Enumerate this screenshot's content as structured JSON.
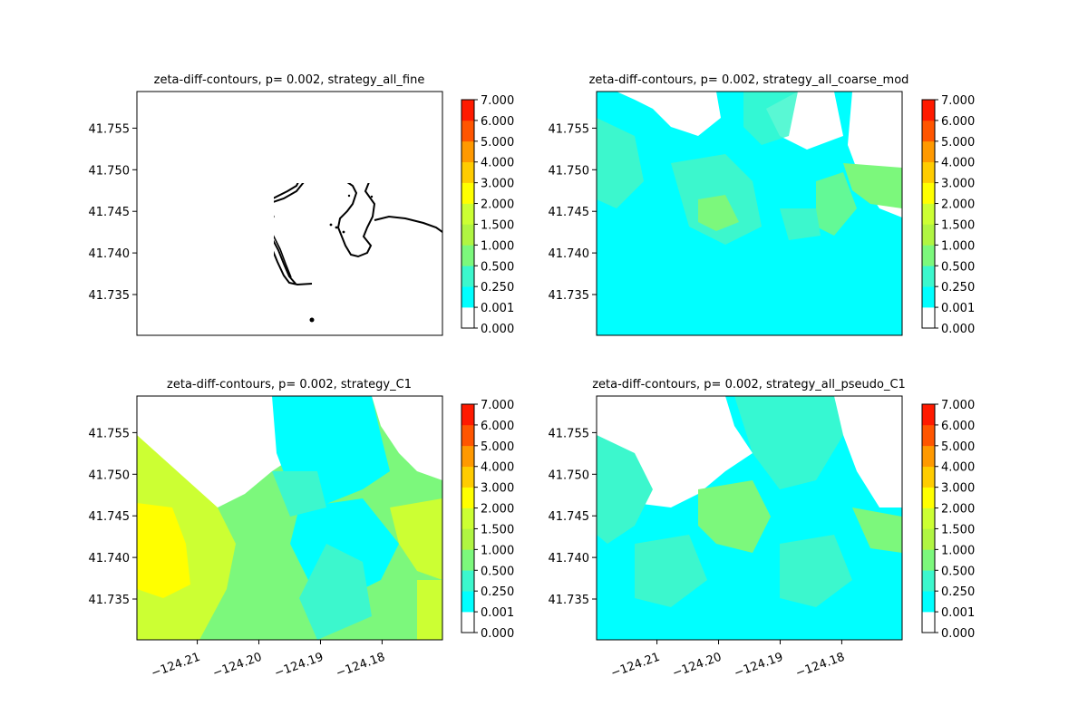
{
  "figure": {
    "xticks": [
      "−124.21",
      "−124.20",
      "−124.19",
      "−124.18"
    ],
    "yticks": [
      "41.755",
      "41.750",
      "41.745",
      "41.740",
      "41.735"
    ],
    "colorbar": {
      "ticks": [
        "7.000",
        "6.000",
        "5.000",
        "4.000",
        "3.000",
        "2.000",
        "1.500",
        "1.000",
        "0.500",
        "0.250",
        "0.001",
        "0.000"
      ],
      "levels": [
        0.0,
        0.001,
        0.25,
        0.5,
        1.0,
        1.5,
        2.0,
        3.0,
        4.0,
        5.0,
        6.0,
        7.0
      ],
      "colors": [
        "#ffffff",
        "#00ffff",
        "#3cf7cd",
        "#7cf87c",
        "#b0f542",
        "#ccff33",
        "#ffff00",
        "#ffcc00",
        "#ff9900",
        "#ff5500",
        "#ff1a00"
      ]
    }
  },
  "chart_data": [
    {
      "type": "heatmap",
      "title": "zeta-diff-contours, p= 0.002, strategy_all_fine",
      "x_ticks": [
        -124.21,
        -124.2,
        -124.19,
        -124.18
      ],
      "y_ticks": [
        41.735,
        41.74,
        41.745,
        41.75,
        41.755
      ],
      "xlim": [
        -124.2198,
        -124.1702
      ],
      "ylim": [
        41.7301,
        41.7594
      ],
      "x_tick_labels_shown": false,
      "fill_summary": "no filled contours (all below 0.001)"
    },
    {
      "type": "heatmap",
      "title": "zeta-diff-contours, p= 0.002, strategy_all_coarse_mod",
      "x_ticks": [
        -124.21,
        -124.2,
        -124.19,
        -124.18
      ],
      "y_ticks": [
        41.735,
        41.74,
        41.745,
        41.75,
        41.755
      ],
      "xlim": [
        -124.2198,
        -124.1702
      ],
      "ylim": [
        41.7301,
        41.7594
      ],
      "x_tick_labels_shown": false,
      "fill_summary": "mostly 0.001-0.25 (cyan) with patches 0.25-1.0"
    },
    {
      "type": "heatmap",
      "title": "zeta-diff-contours, p= 0.002, strategy_C1",
      "x_ticks": [
        -124.21,
        -124.2,
        -124.19,
        -124.18
      ],
      "y_ticks": [
        41.735,
        41.74,
        41.745,
        41.75,
        41.755
      ],
      "xlim": [
        -124.2198,
        -124.1702
      ],
      "ylim": [
        41.7301,
        41.7594
      ],
      "x_tick_labels_shown": true,
      "fill_summary": "values up to 2.0-3.0 (yellow) in west, 1.0-2.0 widely, 0.001-0.25 in bay"
    },
    {
      "type": "heatmap",
      "title": "zeta-diff-contours, p= 0.002, strategy_all_pseudo_C1",
      "x_ticks": [
        -124.21,
        -124.2,
        -124.19,
        -124.18
      ],
      "y_ticks": [
        41.735,
        41.74,
        41.745,
        41.75,
        41.755
      ],
      "xlim": [
        -124.2198,
        -124.1702
      ],
      "ylim": [
        41.7301,
        41.7594
      ],
      "x_tick_labels_shown": true,
      "fill_summary": "mostly 0.001-0.25 with 0.25-1.0 patches and small 1.0-1.5 areas"
    }
  ]
}
